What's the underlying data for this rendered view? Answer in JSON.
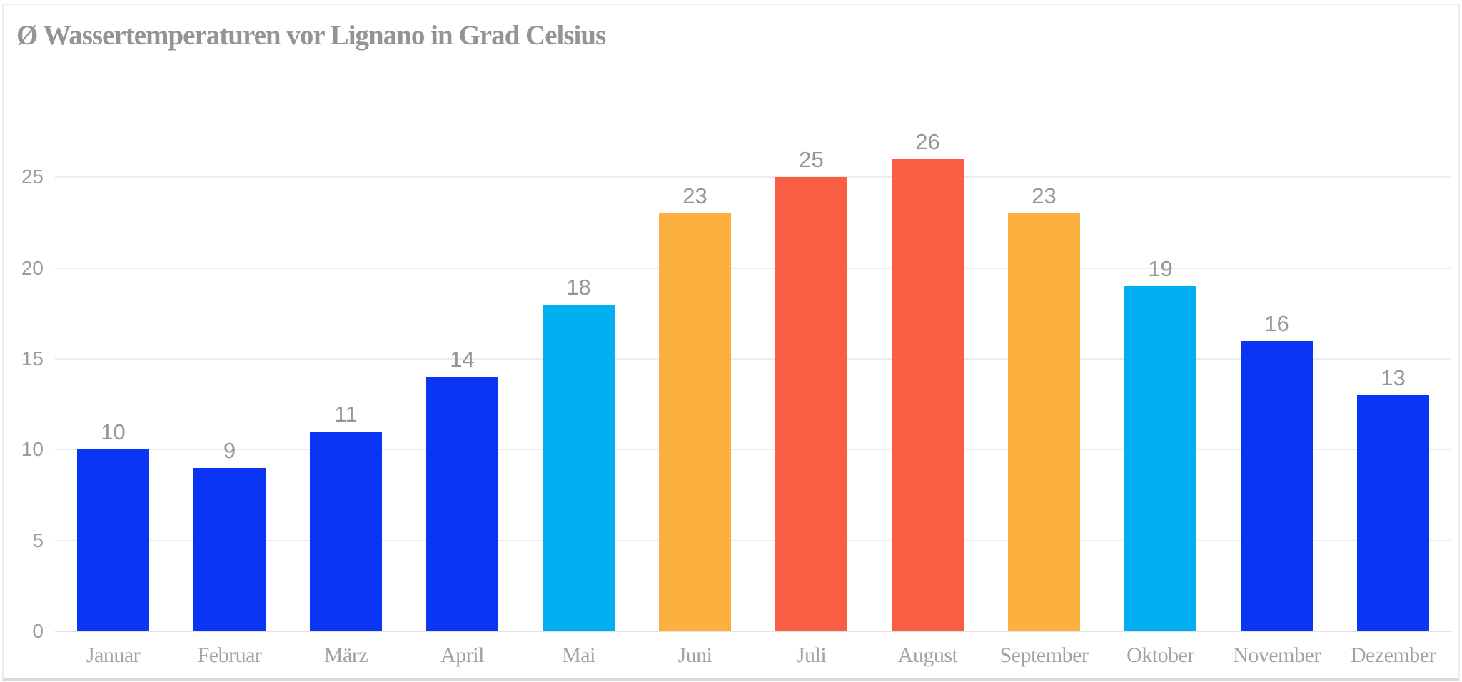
{
  "title": "Ø Wassertemperaturen vor Lignano in Grad Celsius",
  "chart_data": {
    "type": "bar",
    "title": "Ø Wassertemperaturen vor Lignano in Grad Celsius",
    "categories": [
      "Januar",
      "Februar",
      "März",
      "April",
      "Mai",
      "Juni",
      "Juli",
      "August",
      "September",
      "Oktober",
      "November",
      "Dezember"
    ],
    "values": [
      10,
      9,
      11,
      14,
      18,
      23,
      25,
      26,
      23,
      19,
      16,
      13
    ],
    "bar_colors": [
      "#0a35f4",
      "#0a35f4",
      "#0a35f4",
      "#0a35f4",
      "#02aff0",
      "#fbb040",
      "#fa5e45",
      "#fa5e45",
      "#fbb040",
      "#02aff0",
      "#0a35f4",
      "#0a35f4"
    ],
    "palette": {
      "cold_blue": "#0a35f4",
      "mild_cyan": "#02aff0",
      "warm_orange": "#fbb040",
      "hot_red": "#fa5e45"
    },
    "y_ticks": [
      0,
      5,
      10,
      15,
      20,
      25
    ],
    "ylim": [
      0,
      30
    ],
    "xlabel": "",
    "ylabel": "",
    "unit": "Grad Celsius",
    "grid": true,
    "legend_position": "none",
    "value_labels_shown": true,
    "colors": {
      "title_text": "#949494",
      "tick_text": "#9c9c9c",
      "value_label_text": "#969696",
      "month_label_text": "#a2a2a2",
      "gridline": "#ececec",
      "baseline": "#e2e2e2",
      "background": "#ffffff"
    }
  }
}
